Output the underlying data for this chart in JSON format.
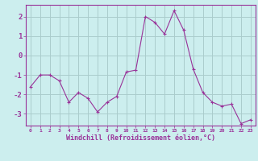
{
  "x": [
    0,
    1,
    2,
    3,
    4,
    5,
    6,
    7,
    8,
    9,
    10,
    11,
    12,
    13,
    14,
    15,
    16,
    17,
    18,
    19,
    20,
    21,
    22,
    23
  ],
  "y": [
    -1.6,
    -1.0,
    -1.0,
    -1.3,
    -2.4,
    -1.9,
    -2.2,
    -2.9,
    -2.4,
    -2.1,
    -0.85,
    -0.75,
    2.0,
    1.7,
    1.1,
    2.3,
    1.3,
    -0.7,
    -1.9,
    -2.4,
    -2.6,
    -2.5,
    -3.5,
    -3.3
  ],
  "line_color": "#993399",
  "marker": "+",
  "marker_size": 3,
  "bg_color": "#cceeee",
  "grid_color": "#aacccc",
  "xlabel": "Windchill (Refroidissement éolien,°C)",
  "ylim": [
    -3.6,
    2.6
  ],
  "xlim": [
    -0.5,
    23.5
  ],
  "yticks": [
    -3,
    -2,
    -1,
    0,
    1,
    2
  ],
  "xticks": [
    0,
    1,
    2,
    3,
    4,
    5,
    6,
    7,
    8,
    9,
    10,
    11,
    12,
    13,
    14,
    15,
    16,
    17,
    18,
    19,
    20,
    21,
    22,
    23
  ]
}
